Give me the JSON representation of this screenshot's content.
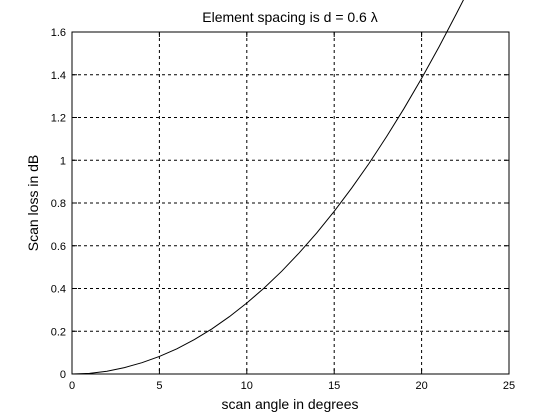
{
  "chart_data": {
    "type": "line",
    "title": "Element spacing is d = 0.6 λ",
    "xlabel": "scan angle in degrees",
    "ylabel": "Scan loss in dB",
    "xlim": [
      0,
      25
    ],
    "ylim": [
      0,
      1.6
    ],
    "xticks": [
      0,
      5,
      10,
      15,
      20,
      25
    ],
    "yticks": [
      0,
      0.2,
      0.4,
      0.6,
      0.8,
      1,
      1.2,
      1.4,
      1.6
    ],
    "grid": true,
    "series": [
      {
        "color": "#000000",
        "x": [
          0,
          1,
          2,
          3,
          4,
          5,
          6,
          7,
          8,
          9,
          10,
          11,
          12,
          13,
          14,
          15,
          16,
          17,
          18,
          19,
          20,
          21,
          22,
          22.5
        ],
        "y": [
          0,
          0.003,
          0.013,
          0.03,
          0.053,
          0.082,
          0.118,
          0.161,
          0.211,
          0.268,
          0.332,
          0.403,
          0.481,
          0.567,
          0.66,
          0.761,
          0.87,
          0.986,
          1.111,
          1.243,
          1.383,
          1.531,
          1.687,
          1.767
        ]
      }
    ]
  }
}
